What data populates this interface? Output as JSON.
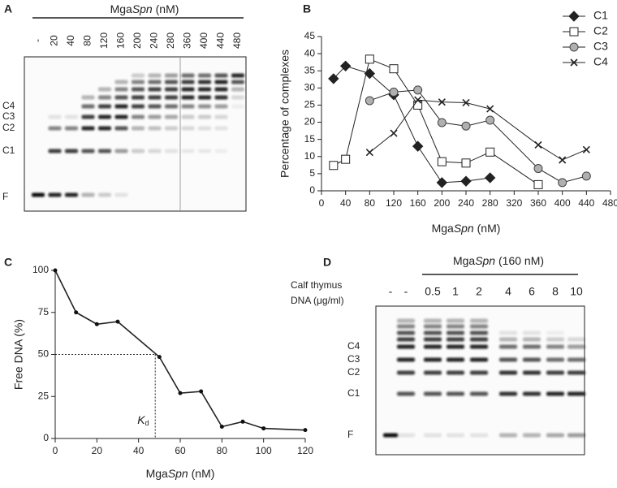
{
  "chart_data": [
    {
      "type": "line",
      "panel_label": "B",
      "ylabel": "Percentage of complexes",
      "xlabel": [
        "Mga",
        "Spn",
        " (nM)"
      ],
      "xlim": [
        0,
        480
      ],
      "xticks": [
        0,
        40,
        80,
        120,
        160,
        200,
        240,
        280,
        320,
        360,
        400,
        440,
        480
      ],
      "ylim": [
        0,
        45
      ],
      "yticks": [
        0,
        5,
        10,
        15,
        20,
        25,
        30,
        35,
        40,
        45
      ],
      "legend": "top-right",
      "series": [
        {
          "name": "C1",
          "color": "#222222",
          "marker": "diamond",
          "x": [
            20,
            40,
            80,
            120,
            160,
            200,
            240,
            280
          ],
          "values": [
            32.7,
            36.4,
            34.2,
            28,
            13,
            2.4,
            2.8,
            3.8
          ]
        },
        {
          "name": "C2",
          "color": "#ffffff",
          "marker": "square",
          "x": [
            20,
            40,
            80,
            120,
            160,
            200,
            240,
            280,
            360
          ],
          "values": [
            7.4,
            9.2,
            38.4,
            35.6,
            25,
            8.5,
            8.1,
            11.3,
            1.8
          ]
        },
        {
          "name": "C3",
          "color": "#b0b0b0",
          "marker": "circle",
          "x": [
            80,
            120,
            160,
            200,
            240,
            280,
            360,
            400,
            440
          ],
          "values": [
            26.3,
            28.8,
            29.4,
            19.9,
            18.9,
            20.6,
            6.5,
            2.4,
            4.3
          ]
        },
        {
          "name": "C4",
          "color": "#222222",
          "marker": "cross",
          "x": [
            80,
            120,
            160,
            200,
            240,
            280,
            360,
            400,
            440
          ],
          "values": [
            11.2,
            16.8,
            26.5,
            25.9,
            25.7,
            23.9,
            13.4,
            9,
            12
          ]
        }
      ]
    },
    {
      "type": "line",
      "panel_label": "C",
      "ylabel": "Free DNA (%)",
      "xlabel": [
        "Mga",
        "Spn",
        " (nM)"
      ],
      "xlim": [
        0,
        120
      ],
      "xticks": [
        0,
        20,
        40,
        60,
        80,
        100,
        120
      ],
      "ylim": [
        0,
        100
      ],
      "yticks": [
        0,
        25,
        50,
        75,
        100
      ],
      "series": [
        {
          "color": "#111111",
          "marker": "dot",
          "x": [
            0,
            10,
            20,
            30,
            50,
            60,
            70,
            80,
            90,
            100,
            120
          ],
          "values": [
            100,
            75,
            68,
            69.5,
            48.5,
            27,
            28,
            7,
            10,
            6,
            5
          ]
        }
      ],
      "reference": {
        "x": 48,
        "y": 50
      },
      "annotation": {
        "main": "K",
        "sub": "d"
      }
    }
  ],
  "gels": [
    {
      "panel_label": "A",
      "header": [
        "Mga",
        "Spn",
        " (nM)"
      ],
      "lanes": [
        "-",
        "20",
        "40",
        "80",
        "120",
        "160",
        "200",
        "240",
        "280",
        "360",
        "400",
        "440",
        "480"
      ],
      "bands": [
        "C4",
        "C3",
        "C2",
        "C1",
        "F"
      ]
    },
    {
      "panel_label": "D",
      "header": [
        "Mga",
        "Spn",
        " (160 nM)"
      ],
      "condition": [
        "Calf thymus",
        "DNA (μg/ml)"
      ],
      "lanes": [
        "-",
        "-",
        "0.5",
        "1",
        "2",
        "4",
        "6",
        "8",
        "10"
      ],
      "bands": [
        "C4",
        "C3",
        "C2",
        "C1",
        "F"
      ]
    }
  ]
}
